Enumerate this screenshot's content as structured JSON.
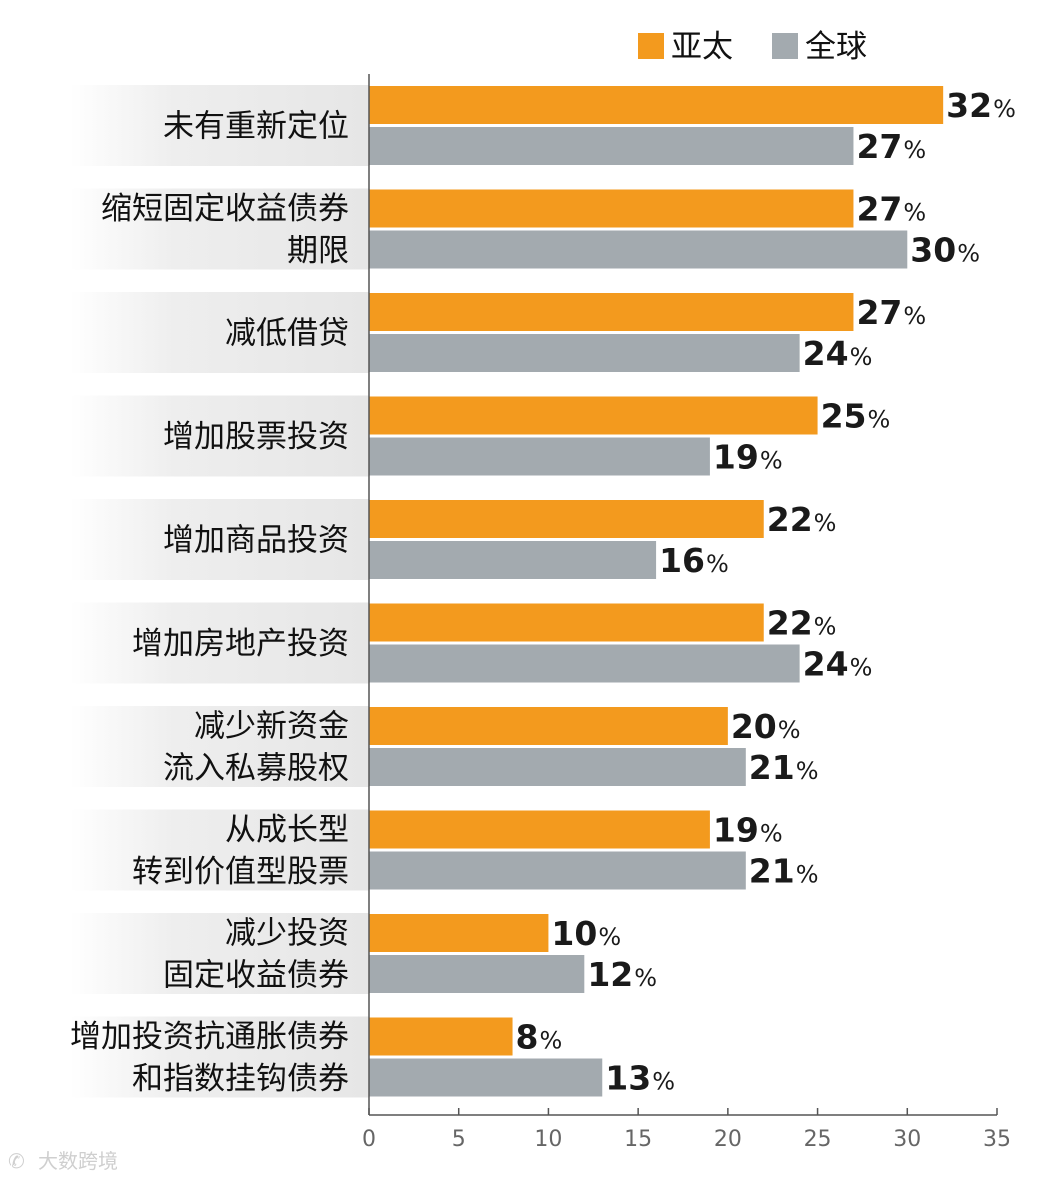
{
  "chart_data": {
    "type": "bar",
    "orientation": "horizontal",
    "categories": [
      [
        "未有重新定位"
      ],
      [
        "缩短固定收益债券",
        "期限"
      ],
      [
        "减低借贷"
      ],
      [
        "增加股票投资"
      ],
      [
        "增加商品投资"
      ],
      [
        "增加房地产投资"
      ],
      [
        "减少新资金",
        "流入私募股权"
      ],
      [
        "从成长型",
        "转到价值型股票"
      ],
      [
        "减少投资",
        "固定收益债券"
      ],
      [
        "增加投资抗通胀债券",
        "和指数挂钩债券"
      ]
    ],
    "series": [
      {
        "name": "亚太",
        "color": "#f39a1e",
        "values": [
          32,
          27,
          27,
          25,
          22,
          22,
          20,
          19,
          10,
          8
        ]
      },
      {
        "name": "全球",
        "color": "#a3aaaf",
        "values": [
          27,
          30,
          24,
          19,
          16,
          24,
          21,
          21,
          12,
          13
        ]
      }
    ],
    "value_suffix": "%",
    "xlim": [
      0,
      35
    ],
    "xticks": [
      0,
      5,
      10,
      15,
      20,
      25,
      30,
      35
    ],
    "legend": "top-right",
    "grid": false,
    "label_band_color": "#e8e8e8"
  },
  "watermark": "大数跨境"
}
